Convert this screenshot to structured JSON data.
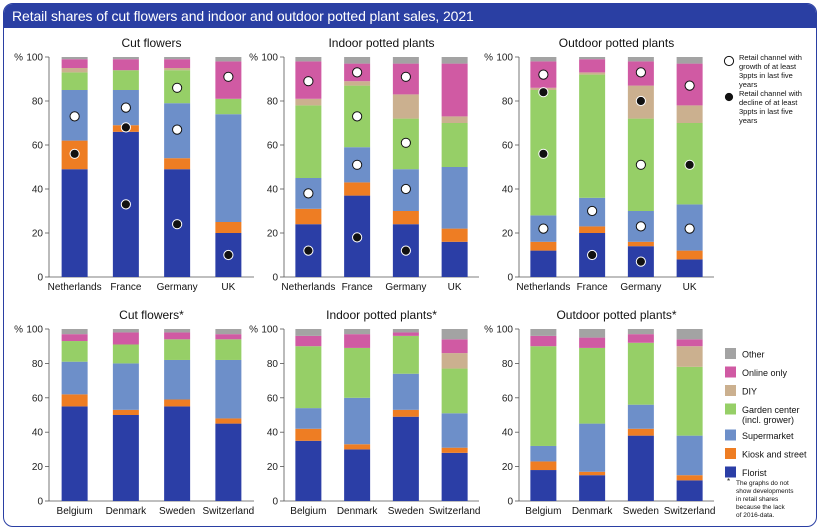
{
  "title": "Retail shares of cut flowers and indoor and outdoor potted plant sales, 2021",
  "colors": {
    "Florist": "#2b3ea6",
    "Kiosk and street": "#ee7d23",
    "Supermarket": "#6d8fc9",
    "Garden center (incl. grower)": "#96cf67",
    "DIY": "#cbb08f",
    "Online only": "#d05aa3",
    "Other": "#a3a3a3"
  },
  "stack_order": [
    "Florist",
    "Kiosk and street",
    "Supermarket",
    "Garden center (incl. grower)",
    "DIY",
    "Online only",
    "Other"
  ],
  "legend": {
    "categories": [
      "Other",
      "Online only",
      "DIY",
      "Garden center\n(incl. grower)",
      "Supermarket",
      "Kiosk and street",
      "Florist"
    ],
    "growth_marker_label": "Retail channel with growth of at least 3ppts in last five years",
    "decline_marker_label": "Retail channel with decline of at least 3ppts in last five years",
    "footnote_symbol": "*",
    "footnote": "The graphs do not show developments in retail shares because the lack of 2016-data."
  },
  "chart_data": [
    {
      "type": "bar",
      "title": "Cut flowers",
      "categories": [
        "Netherlands",
        "France",
        "Germany",
        "UK"
      ],
      "ylabel": "%",
      "ylim": [
        0,
        100
      ],
      "yticks": [
        0,
        20,
        40,
        60,
        80,
        100
      ],
      "series": [
        {
          "name": "Florist",
          "values": [
            49,
            66,
            49,
            20
          ]
        },
        {
          "name": "Kiosk and street",
          "values": [
            13,
            3,
            5,
            5
          ]
        },
        {
          "name": "Supermarket",
          "values": [
            23,
            16,
            25,
            49
          ]
        },
        {
          "name": "Garden center (incl. grower)",
          "values": [
            8,
            9,
            15,
            7
          ]
        },
        {
          "name": "DIY",
          "values": [
            2,
            0,
            1,
            0
          ]
        },
        {
          "name": "Online only",
          "values": [
            4,
            5,
            4,
            17
          ]
        },
        {
          "name": "Other",
          "values": [
            1,
            1,
            1,
            2
          ]
        }
      ],
      "growth_markers": [
        {
          "category": "Netherlands",
          "value": 73
        },
        {
          "category": "France",
          "value": 77
        },
        {
          "category": "Germany",
          "value": 86
        },
        {
          "category": "Germany",
          "value": 67
        },
        {
          "category": "UK",
          "value": 91
        }
      ],
      "decline_markers": [
        {
          "category": "Netherlands",
          "value": 56
        },
        {
          "category": "France",
          "value": 68
        },
        {
          "category": "France",
          "value": 33
        },
        {
          "category": "Germany",
          "value": 24
        },
        {
          "category": "UK",
          "value": 10
        }
      ]
    },
    {
      "type": "bar",
      "title": "Indoor potted plants",
      "categories": [
        "Netherlands",
        "France",
        "Germany",
        "UK"
      ],
      "ylabel": "%",
      "ylim": [
        0,
        100
      ],
      "yticks": [
        0,
        20,
        40,
        60,
        80,
        100
      ],
      "series": [
        {
          "name": "Florist",
          "values": [
            24,
            37,
            24,
            16
          ]
        },
        {
          "name": "Kiosk and street",
          "values": [
            7,
            6,
            6,
            6
          ]
        },
        {
          "name": "Supermarket",
          "values": [
            14,
            16,
            19,
            28
          ]
        },
        {
          "name": "Garden center (incl. grower)",
          "values": [
            33,
            28,
            23,
            20
          ]
        },
        {
          "name": "DIY",
          "values": [
            3,
            2,
            11,
            3
          ]
        },
        {
          "name": "Online only",
          "values": [
            17,
            8,
            14,
            24
          ]
        },
        {
          "name": "Other",
          "values": [
            2,
            3,
            3,
            3
          ]
        }
      ],
      "growth_markers": [
        {
          "category": "Netherlands",
          "value": 89
        },
        {
          "category": "Netherlands",
          "value": 38
        },
        {
          "category": "France",
          "value": 93
        },
        {
          "category": "France",
          "value": 73
        },
        {
          "category": "France",
          "value": 51
        },
        {
          "category": "Germany",
          "value": 91
        },
        {
          "category": "Germany",
          "value": 61
        },
        {
          "category": "Germany",
          "value": 40
        }
      ],
      "decline_markers": [
        {
          "category": "Netherlands",
          "value": 12
        },
        {
          "category": "France",
          "value": 18
        },
        {
          "category": "Germany",
          "value": 12
        }
      ]
    },
    {
      "type": "bar",
      "title": "Outdoor potted plants",
      "categories": [
        "Netherlands",
        "France",
        "Germany",
        "UK"
      ],
      "ylabel": "%",
      "ylim": [
        0,
        100
      ],
      "yticks": [
        0,
        20,
        40,
        60,
        80,
        100
      ],
      "series": [
        {
          "name": "Florist",
          "values": [
            12,
            20,
            14,
            8
          ]
        },
        {
          "name": "Kiosk and street",
          "values": [
            4,
            3,
            2,
            4
          ]
        },
        {
          "name": "Supermarket",
          "values": [
            12,
            13,
            14,
            21
          ]
        },
        {
          "name": "Garden center (incl. grower)",
          "values": [
            57,
            56,
            42,
            37
          ]
        },
        {
          "name": "DIY",
          "values": [
            1,
            1,
            15,
            8
          ]
        },
        {
          "name": "Online only",
          "values": [
            12,
            6,
            11,
            19
          ]
        },
        {
          "name": "Other",
          "values": [
            2,
            1,
            2,
            3
          ]
        }
      ],
      "growth_markers": [
        {
          "category": "Netherlands",
          "value": 92
        },
        {
          "category": "Netherlands",
          "value": 22
        },
        {
          "category": "France",
          "value": 30
        },
        {
          "category": "Germany",
          "value": 93
        },
        {
          "category": "Germany",
          "value": 51
        },
        {
          "category": "Germany",
          "value": 23
        },
        {
          "category": "UK",
          "value": 87
        },
        {
          "category": "UK",
          "value": 22
        }
      ],
      "decline_markers": [
        {
          "category": "Netherlands",
          "value": 84
        },
        {
          "category": "Netherlands",
          "value": 56
        },
        {
          "category": "France",
          "value": 10
        },
        {
          "category": "Germany",
          "value": 80
        },
        {
          "category": "Germany",
          "value": 7
        },
        {
          "category": "UK",
          "value": 51
        }
      ]
    },
    {
      "type": "bar",
      "title": "Cut flowers*",
      "categories": [
        "Belgium",
        "Denmark",
        "Sweden",
        "Switzerland"
      ],
      "ylabel": "%",
      "ylim": [
        0,
        100
      ],
      "yticks": [
        0,
        20,
        40,
        60,
        80,
        100
      ],
      "series": [
        {
          "name": "Florist",
          "values": [
            55,
            50,
            55,
            45
          ]
        },
        {
          "name": "Kiosk and street",
          "values": [
            7,
            3,
            4,
            3
          ]
        },
        {
          "name": "Supermarket",
          "values": [
            19,
            27,
            23,
            34
          ]
        },
        {
          "name": "Garden center (incl. grower)",
          "values": [
            12,
            11,
            12,
            12
          ]
        },
        {
          "name": "DIY",
          "values": [
            0,
            0,
            0,
            0
          ]
        },
        {
          "name": "Online only",
          "values": [
            4,
            7,
            4,
            3
          ]
        },
        {
          "name": "Other",
          "values": [
            3,
            2,
            2,
            3
          ]
        }
      ]
    },
    {
      "type": "bar",
      "title": "Indoor potted plants*",
      "categories": [
        "Belgium",
        "Denmark",
        "Sweden",
        "Switzerland"
      ],
      "ylabel": "%",
      "ylim": [
        0,
        100
      ],
      "yticks": [
        0,
        20,
        40,
        60,
        80,
        100
      ],
      "series": [
        {
          "name": "Florist",
          "values": [
            35,
            30,
            49,
            28
          ]
        },
        {
          "name": "Kiosk and street",
          "values": [
            7,
            3,
            4,
            3
          ]
        },
        {
          "name": "Supermarket",
          "values": [
            12,
            27,
            21,
            20
          ]
        },
        {
          "name": "Garden center (incl. grower)",
          "values": [
            36,
            29,
            22,
            26
          ]
        },
        {
          "name": "DIY",
          "values": [
            0,
            0,
            0,
            9
          ]
        },
        {
          "name": "Online only",
          "values": [
            6,
            8,
            2,
            8
          ]
        },
        {
          "name": "Other",
          "values": [
            4,
            3,
            2,
            6
          ]
        }
      ]
    },
    {
      "type": "bar",
      "title": "Outdoor potted plants*",
      "categories": [
        "Belgium",
        "Denmark",
        "Sweden",
        "Switzerland"
      ],
      "ylabel": "%",
      "ylim": [
        0,
        100
      ],
      "yticks": [
        0,
        20,
        40,
        60,
        80,
        100
      ],
      "series": [
        {
          "name": "Florist",
          "values": [
            18,
            15,
            38,
            12
          ]
        },
        {
          "name": "Kiosk and street",
          "values": [
            5,
            2,
            4,
            3
          ]
        },
        {
          "name": "Supermarket",
          "values": [
            9,
            28,
            14,
            23
          ]
        },
        {
          "name": "Garden center (incl. grower)",
          "values": [
            58,
            44,
            36,
            40
          ]
        },
        {
          "name": "DIY",
          "values": [
            0,
            0,
            0,
            12
          ]
        },
        {
          "name": "Online only",
          "values": [
            6,
            6,
            5,
            4
          ]
        },
        {
          "name": "Other",
          "values": [
            4,
            5,
            3,
            6
          ]
        }
      ]
    }
  ]
}
